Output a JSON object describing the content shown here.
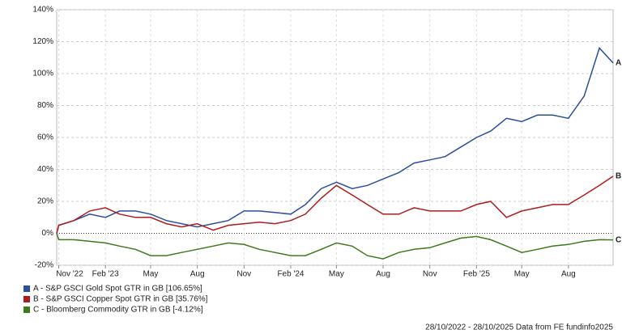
{
  "chart_data": {
    "type": "line",
    "footer": "28/10/2022 - 28/10/2025 Data from FE fundinfo2025",
    "xlim": [
      "2022-10-28",
      "2025-10-28"
    ],
    "xticks": [
      {
        "value": "2022-11",
        "label": "Nov '22"
      },
      {
        "value": "2023-02",
        "label": "Feb '23"
      },
      {
        "value": "2023-05",
        "label": "May"
      },
      {
        "value": "2023-08",
        "label": "Aug"
      },
      {
        "value": "2023-11",
        "label": "Nov"
      },
      {
        "value": "2024-02",
        "label": "Feb '24"
      },
      {
        "value": "2024-05",
        "label": "May"
      },
      {
        "value": "2024-08",
        "label": "Aug"
      },
      {
        "value": "2024-11",
        "label": "Nov"
      },
      {
        "value": "2025-02",
        "label": "Feb '25"
      },
      {
        "value": "2025-05",
        "label": "May"
      },
      {
        "value": "2025-08",
        "label": "Aug"
      }
    ],
    "ylim": [
      -20,
      140
    ],
    "yticks": [
      {
        "value": -20,
        "label": "-20%"
      },
      {
        "value": 0,
        "label": "0%"
      },
      {
        "value": 20,
        "label": "20%"
      },
      {
        "value": 40,
        "label": "40%"
      },
      {
        "value": 60,
        "label": "60%"
      },
      {
        "value": 80,
        "label": "80%"
      },
      {
        "value": 100,
        "label": "100%"
      },
      {
        "value": 120,
        "label": "120%"
      },
      {
        "value": 140,
        "label": "140%"
      }
    ],
    "grid": true,
    "x": [
      "2022-10-28",
      "2022-11",
      "2022-12",
      "2023-01",
      "2023-02",
      "2023-03",
      "2023-04",
      "2023-05",
      "2023-06",
      "2023-07",
      "2023-08",
      "2023-09",
      "2023-10",
      "2023-11",
      "2023-12",
      "2024-01",
      "2024-02",
      "2024-03",
      "2024-04",
      "2024-05",
      "2024-06",
      "2024-07",
      "2024-08",
      "2024-09",
      "2024-10",
      "2024-11",
      "2024-12",
      "2025-01",
      "2025-02",
      "2025-03",
      "2025-04",
      "2025-05",
      "2025-06",
      "2025-07",
      "2025-08",
      "2025-09",
      "2025-10",
      "2025-10-28"
    ],
    "series": [
      {
        "name": "A - S&P GSCI Gold Spot GTR in GB [106.65%]",
        "label": "A",
        "color": "#2b4f9e",
        "values": [
          0,
          5,
          8,
          12,
          10,
          14,
          14,
          12,
          8,
          6,
          4,
          6,
          8,
          14,
          14,
          13,
          12,
          18,
          28,
          32,
          28,
          30,
          34,
          38,
          44,
          46,
          48,
          54,
          60,
          64,
          72,
          70,
          74,
          74,
          72,
          86,
          116,
          106.65
        ]
      },
      {
        "name": "B - S&P GSCI Copper Spot GTR in GB [35.76%]",
        "label": "B",
        "color": "#b01c1c",
        "values": [
          0,
          5,
          8,
          14,
          16,
          12,
          10,
          10,
          6,
          4,
          6,
          2,
          5,
          6,
          7,
          6,
          8,
          12,
          22,
          30,
          24,
          18,
          12,
          12,
          16,
          14,
          14,
          14,
          18,
          20,
          10,
          14,
          16,
          18,
          18,
          24,
          30,
          35.76
        ]
      },
      {
        "name": "C - Bloomberg Commodity GTR in GB [-4.12%]",
        "label": "C",
        "color": "#3c7a1c",
        "values": [
          0,
          -4,
          -4,
          -5,
          -6,
          -8,
          -10,
          -14,
          -14,
          -12,
          -10,
          -8,
          -6,
          -7,
          -10,
          -12,
          -14,
          -14,
          -10,
          -6,
          -8,
          -14,
          -16,
          -12,
          -10,
          -9,
          -6,
          -3,
          -2,
          -4,
          -8,
          -12,
          -10,
          -8,
          -7,
          -5,
          -4,
          -4.12
        ]
      }
    ]
  }
}
